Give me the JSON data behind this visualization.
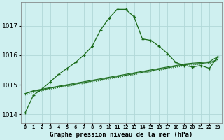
{
  "title": "Graphe pression niveau de la mer (hPa)",
  "background_color": "#cff0f0",
  "grid_color": "#b0d8d8",
  "line_color": "#1a6b1a",
  "x_labels": [
    "0",
    "1",
    "2",
    "3",
    "4",
    "5",
    "6",
    "7",
    "8",
    "9",
    "10",
    "11",
    "12",
    "13",
    "14",
    "15",
    "16",
    "17",
    "18",
    "19",
    "20",
    "21",
    "22",
    "23"
  ],
  "ylim": [
    1013.7,
    1017.8
  ],
  "yticks": [
    1014,
    1015,
    1016,
    1017
  ],
  "line_peak": [
    1014.05,
    1014.65,
    1014.85,
    1015.1,
    1015.35,
    1015.55,
    1015.75,
    1016.0,
    1016.3,
    1016.85,
    1017.25,
    1017.55,
    1017.55,
    1017.3,
    1016.55,
    1016.5,
    1016.3,
    1016.05,
    1015.75,
    1015.65,
    1015.6,
    1015.65,
    1015.55,
    1015.95
  ],
  "line_flat1": [
    1014.7,
    1014.8,
    1014.85,
    1014.9,
    1014.95,
    1015.0,
    1015.05,
    1015.1,
    1015.15,
    1015.2,
    1015.25,
    1015.3,
    1015.35,
    1015.4,
    1015.45,
    1015.5,
    1015.55,
    1015.6,
    1015.65,
    1015.7,
    1015.73,
    1015.75,
    1015.78,
    1015.95
  ],
  "line_flat2": [
    1014.7,
    1014.78,
    1014.82,
    1014.88,
    1014.93,
    1014.97,
    1015.02,
    1015.07,
    1015.12,
    1015.17,
    1015.22,
    1015.27,
    1015.32,
    1015.37,
    1015.42,
    1015.47,
    1015.52,
    1015.57,
    1015.62,
    1015.67,
    1015.7,
    1015.72,
    1015.75,
    1015.85
  ],
  "line_flat3": [
    1014.65,
    1014.74,
    1014.79,
    1014.85,
    1014.9,
    1014.94,
    1014.99,
    1015.04,
    1015.09,
    1015.14,
    1015.19,
    1015.24,
    1015.29,
    1015.34,
    1015.39,
    1015.44,
    1015.49,
    1015.54,
    1015.59,
    1015.64,
    1015.67,
    1015.69,
    1015.72,
    1015.82
  ]
}
